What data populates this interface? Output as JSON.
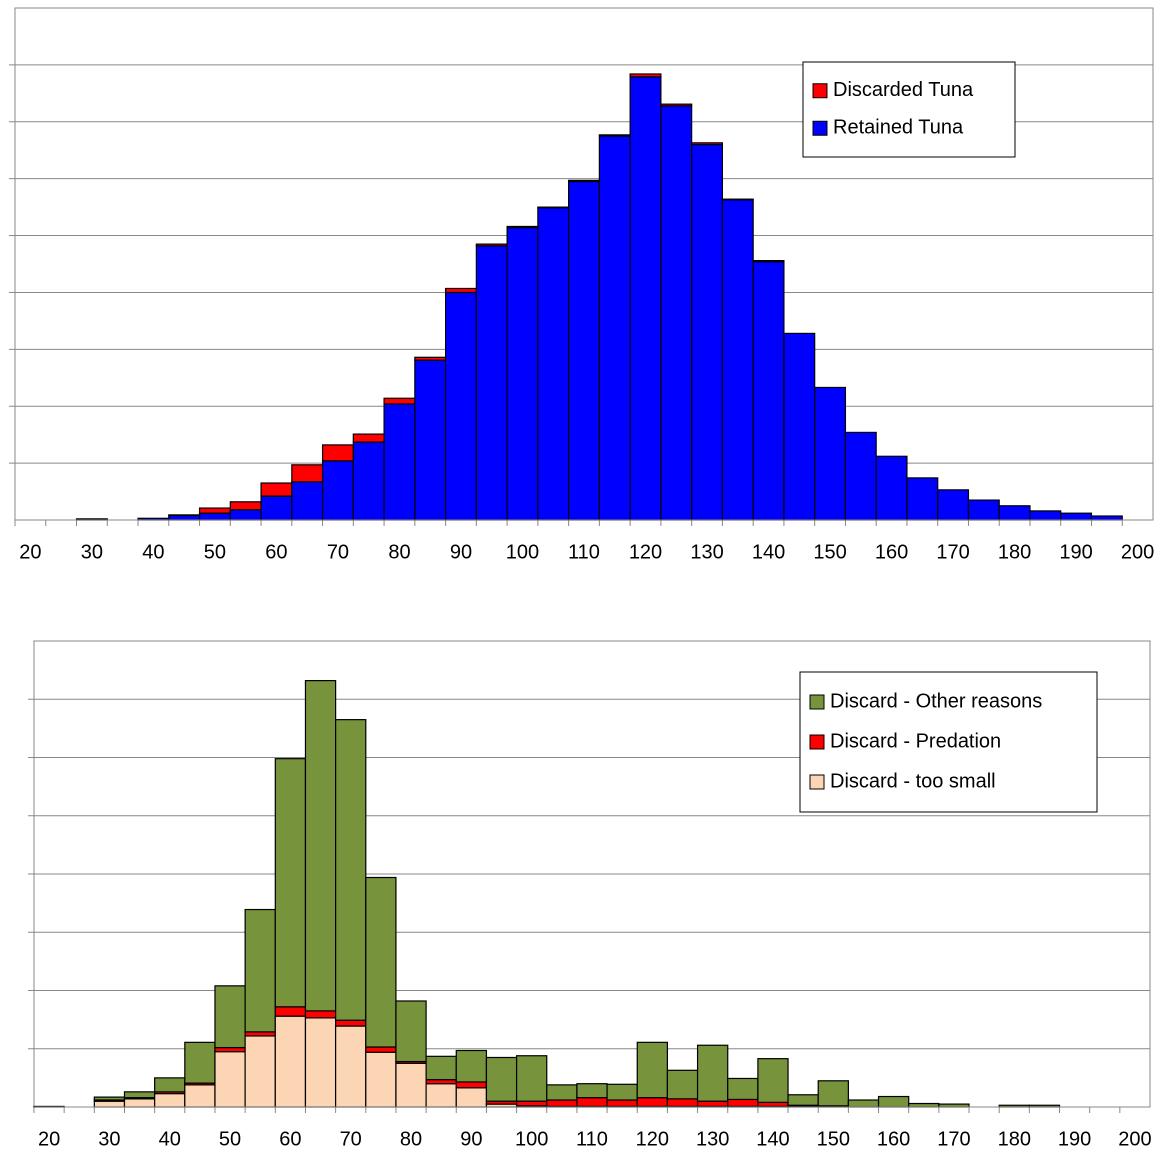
{
  "chart_data": [
    {
      "type": "bar",
      "stacked": true,
      "categories": [
        20,
        null,
        30,
        null,
        40,
        null,
        50,
        null,
        60,
        null,
        70,
        null,
        80,
        null,
        90,
        null,
        100,
        null,
        110,
        null,
        120,
        null,
        130,
        null,
        140,
        null,
        150,
        null,
        160,
        null,
        170,
        null,
        180,
        null,
        190,
        null,
        200
      ],
      "series": [
        {
          "name": "Retained Tuna",
          "color": "#0000ff",
          "values": [
            0,
            0,
            0.02,
            0,
            0.03,
            0.08,
            0.12,
            0.18,
            0.42,
            0.67,
            1.04,
            1.37,
            2.04,
            2.81,
            4.0,
            4.82,
            5.14,
            5.49,
            5.95,
            6.75,
            7.79,
            7.28,
            6.6,
            5.63,
            4.54,
            3.28,
            2.33,
            1.54,
            1.12,
            0.74,
            0.53,
            0.35,
            0.25,
            0.16,
            0.12,
            0.07,
            0
          ]
        },
        {
          "name": "Discarded Tuna",
          "color": "#ff0000",
          "values": [
            0,
            0,
            0,
            0,
            0,
            0.01,
            0.09,
            0.14,
            0.23,
            0.3,
            0.28,
            0.14,
            0.1,
            0.05,
            0.07,
            0.03,
            0.02,
            0.01,
            0.02,
            0.02,
            0.05,
            0.03,
            0.03,
            0.01,
            0.02,
            0,
            0,
            0,
            0,
            0,
            0,
            0,
            0,
            0,
            0,
            0,
            0
          ]
        }
      ],
      "ylim": [
        0,
        9
      ],
      "yticks": [
        1,
        2,
        3,
        4,
        5,
        6,
        7,
        8
      ],
      "grid": true,
      "legend": "upper right"
    },
    {
      "type": "bar",
      "stacked": true,
      "categories": [
        20,
        null,
        30,
        null,
        40,
        null,
        50,
        null,
        60,
        null,
        70,
        null,
        80,
        null,
        90,
        null,
        100,
        null,
        110,
        null,
        120,
        null,
        130,
        null,
        140,
        null,
        150,
        null,
        160,
        null,
        170,
        null,
        180,
        null,
        190,
        null,
        200
      ],
      "series": [
        {
          "name": "Discard - too small",
          "color": "#fcd5b5",
          "values": [
            0,
            0,
            0.1,
            0.14,
            0.23,
            0.38,
            0.95,
            1.22,
            1.56,
            1.53,
            1.39,
            0.94,
            0.75,
            0.4,
            0.33,
            0.05,
            0.02,
            0.01,
            0.01,
            0.01,
            0.01,
            0.01,
            0.01,
            0.01,
            0.01,
            0.01,
            0.01,
            0,
            0,
            0,
            0,
            0,
            0,
            0,
            0,
            0,
            0
          ]
        },
        {
          "name": "Discard - Predation",
          "color": "#ff0000",
          "values": [
            0,
            0,
            0.02,
            0.02,
            0.03,
            0.03,
            0.07,
            0.07,
            0.16,
            0.12,
            0.1,
            0.09,
            0.03,
            0.07,
            0.1,
            0.05,
            0.08,
            0.11,
            0.15,
            0.11,
            0.15,
            0.13,
            0.09,
            0.12,
            0.07,
            0.02,
            0.01,
            0,
            0,
            0,
            0,
            0,
            0,
            0,
            0,
            0,
            0
          ]
        },
        {
          "name": "Discard - Other reasons",
          "color": "#77933c",
          "values": [
            0.01,
            0,
            0.05,
            0.1,
            0.24,
            0.7,
            1.06,
            2.1,
            4.26,
            5.67,
            5.16,
            2.91,
            1.04,
            0.4,
            0.54,
            0.75,
            0.78,
            0.26,
            0.24,
            0.27,
            0.95,
            0.49,
            0.96,
            0.36,
            0.75,
            0.18,
            0.43,
            0.12,
            0.18,
            0.06,
            0.05,
            0,
            0.03,
            0.03,
            0,
            0,
            0
          ]
        }
      ],
      "ylim": [
        0,
        8
      ],
      "yticks": [
        1,
        2,
        3,
        4,
        5,
        6,
        7
      ],
      "grid": true,
      "legend": "upper right"
    }
  ]
}
